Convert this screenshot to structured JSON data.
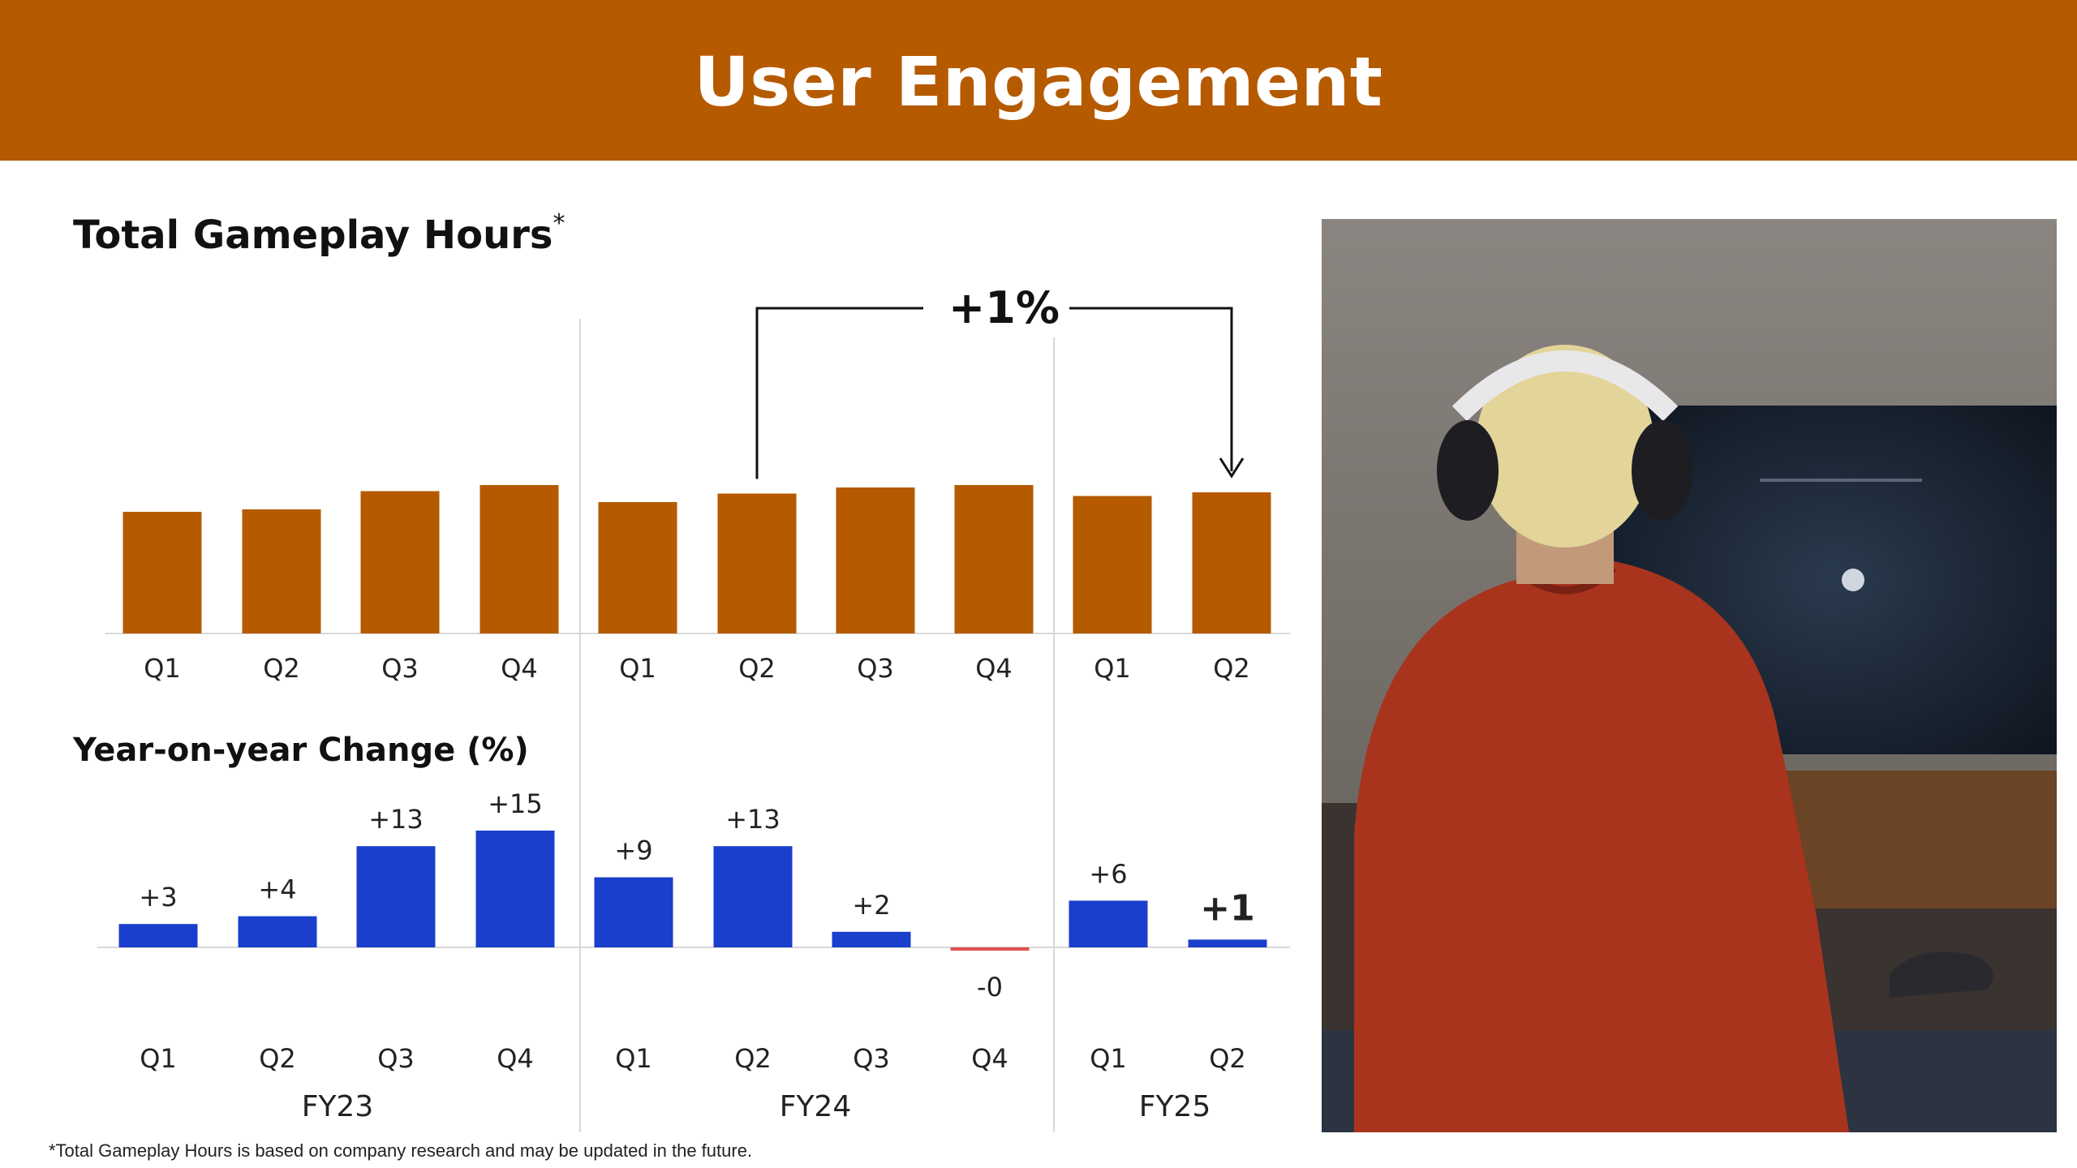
{
  "header": {
    "title": "User Engagement"
  },
  "top_chart": {
    "title": "Total Gameplay Hours",
    "title_mark": "*",
    "growth_label": "+1%"
  },
  "yoy_chart": {
    "title": "Year-on-year Change (%)"
  },
  "footnote": "*Total Gameplay Hours is based on company research and may be updated in the future.",
  "colors": {
    "header": "#b65a00",
    "bar_hours": "#b65a00",
    "bar_yoy": "#1a3fcc",
    "bar_negative": "#e05050"
  },
  "chart_data": [
    {
      "type": "bar",
      "title": "Total Gameplay Hours*",
      "categories": [
        "Q1",
        "Q2",
        "Q3",
        "Q4",
        "Q1",
        "Q2",
        "Q3",
        "Q4",
        "Q1",
        "Q2"
      ],
      "groups": [
        {
          "name": "FY23",
          "count": 4
        },
        {
          "name": "FY24",
          "count": 4
        },
        {
          "name": "FY25",
          "count": 2
        }
      ],
      "values": [
        100,
        102,
        117,
        122,
        108,
        115,
        120,
        122,
        113,
        116
      ],
      "ylim": [
        0,
        130
      ],
      "annotation": {
        "text": "+1%",
        "from_index": 5,
        "to_index": 9
      },
      "grid": false
    },
    {
      "type": "bar",
      "title": "Year-on-year Change (%)",
      "categories": [
        "Q1",
        "Q2",
        "Q3",
        "Q4",
        "Q1",
        "Q2",
        "Q3",
        "Q4",
        "Q1",
        "Q2"
      ],
      "groups": [
        {
          "name": "FY23",
          "count": 4
        },
        {
          "name": "FY24",
          "count": 4
        },
        {
          "name": "FY25",
          "count": 2
        }
      ],
      "values": [
        3,
        4,
        13,
        15,
        9,
        13,
        2,
        -0.3,
        6,
        1
      ],
      "value_labels": [
        "+3",
        "+4",
        "+13",
        "+15",
        "+9",
        "+13",
        "+2",
        "-0",
        "+6",
        "+1"
      ],
      "emphasized_index": 9,
      "ylim": [
        -1,
        16
      ],
      "grid": false
    }
  ]
}
